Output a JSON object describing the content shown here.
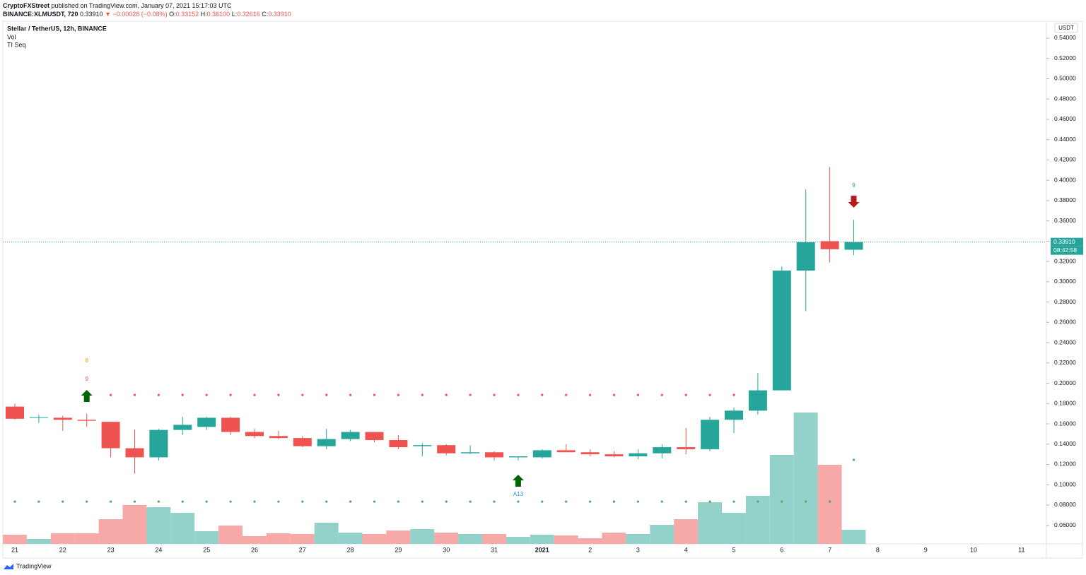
{
  "header": {
    "author": "CryptoFXStreet",
    "published": "published on TradingView.com, January 07, 2021 15:17:03 UTC",
    "symbol": "BINANCE:XLMUSDT, 720",
    "last": "0.33910",
    "change": "▼ −0.00028 (−0.08%)",
    "o_label": "O:",
    "o": "0.33152",
    "h_label": "H:",
    "h": "0.36100",
    "l_label": "L:",
    "l": "0.32616",
    "c_label": "C:",
    "c": "0.33910"
  },
  "footer": {
    "brand": "TradingView"
  },
  "chart_data": {
    "type": "candlestick",
    "title": "Stellar / TetherUS, 12h, BINANCE",
    "indicators": [
      "Vol",
      "TI Seq"
    ],
    "currency": "USDT",
    "up_color": "#26a69a",
    "down_color": "#ef5350",
    "up_volume_color": "#92d2ca",
    "down_volume_color": "#f7a9a7",
    "categories": [
      "21",
      null,
      "22",
      null,
      "23",
      null,
      "24",
      null,
      "25",
      null,
      "26",
      null,
      "27",
      null,
      "28",
      null,
      "29",
      null,
      "30",
      null,
      "31",
      null,
      "2021",
      null,
      "2",
      null,
      "3",
      null,
      "4",
      null,
      "5",
      null,
      "6",
      null,
      "7",
      null,
      "8",
      null,
      "9",
      null,
      "10",
      null,
      "11"
    ],
    "open": [
      0.177,
      0.166,
      0.166,
      0.164,
      0.162,
      0.136,
      0.127,
      0.154,
      0.157,
      0.166,
      0.152,
      0.148,
      0.146,
      0.138,
      0.145,
      0.152,
      0.144,
      0.138,
      0.139,
      0.131,
      0.132,
      0.127,
      0.127,
      0.134,
      0.132,
      0.13,
      0.128,
      0.131,
      0.137,
      0.135,
      0.164,
      0.173,
      0.193,
      0.311,
      0.34,
      0.33152,
      null,
      null,
      null,
      null,
      null,
      null,
      null
    ],
    "high": [
      0.18,
      0.169,
      0.168,
      0.17,
      0.162,
      0.1545,
      0.155,
      0.167,
      0.167,
      0.167,
      0.155,
      0.153,
      0.148,
      0.155,
      0.154,
      0.152,
      0.149,
      0.141,
      0.14,
      0.139,
      0.133,
      0.128,
      0.135,
      0.14,
      0.135,
      0.133,
      0.135,
      0.14,
      0.156,
      0.167,
      0.176,
      0.21,
      0.315,
      0.391,
      0.413,
      0.361,
      null,
      null,
      null,
      null,
      null,
      null,
      null
    ],
    "low": [
      0.164,
      0.161,
      0.153,
      0.157,
      0.127,
      0.111,
      0.124,
      0.149,
      0.154,
      0.149,
      0.146,
      0.145,
      0.137,
      0.135,
      0.143,
      0.142,
      0.135,
      0.128,
      0.129,
      0.13,
      0.124,
      0.124,
      0.126,
      0.132,
      0.128,
      0.127,
      0.125,
      0.126,
      0.13,
      0.133,
      0.151,
      0.169,
      0.193,
      0.271,
      0.319,
      0.32616,
      null,
      null,
      null,
      null,
      null,
      null,
      null
    ],
    "close": [
      0.165,
      0.1665,
      0.164,
      0.163,
      0.136,
      0.127,
      0.154,
      0.159,
      0.166,
      0.152,
      0.148,
      0.146,
      0.138,
      0.145,
      0.152,
      0.144,
      0.137,
      0.139,
      0.131,
      0.132,
      0.127,
      0.128,
      0.134,
      0.132,
      0.13,
      0.128,
      0.131,
      0.137,
      0.135,
      0.164,
      0.173,
      0.193,
      0.311,
      0.339,
      0.332,
      0.3391,
      null,
      null,
      null,
      null,
      null,
      null,
      null
    ],
    "volume": [
      13,
      7,
      15,
      15,
      35,
      55,
      52,
      44,
      18,
      26,
      11,
      15,
      14,
      30,
      16,
      14,
      19,
      21,
      16,
      14,
      14,
      10,
      13,
      12,
      8,
      16,
      14,
      27,
      35,
      59,
      44,
      68,
      126,
      186,
      112,
      20,
      null,
      null,
      null,
      null,
      null,
      null,
      null
    ],
    "tdst_resistance": [
      null,
      null,
      null,
      null,
      0.1885,
      0.1885,
      0.1885,
      0.1885,
      0.1885,
      0.1885,
      0.1885,
      0.1885,
      0.1885,
      0.1885,
      0.1885,
      0.1885,
      0.1885,
      0.1885,
      0.1885,
      0.1885,
      0.1885,
      0.1885,
      0.1885,
      0.1885,
      0.1885,
      0.1885,
      0.1885,
      0.1885,
      0.1885,
      0.1885,
      0.1885,
      null,
      null,
      null,
      null,
      null,
      null,
      null,
      null,
      null,
      null,
      null,
      null
    ],
    "tdst_support": [
      0.0834,
      0.0834,
      0.0834,
      0.0834,
      0.0834,
      0.0834,
      0.0834,
      0.0834,
      0.0834,
      0.0834,
      0.0834,
      0.0834,
      0.0834,
      0.0834,
      0.0834,
      0.0834,
      0.0834,
      0.0834,
      0.0834,
      0.0834,
      0.0834,
      0.0834,
      0.0834,
      0.0834,
      0.0834,
      0.0834,
      0.0834,
      0.0834,
      0.0834,
      0.0834,
      0.0834,
      0.0834,
      0.0834,
      0.0834,
      0.0834,
      0.1245,
      null,
      null,
      null,
      null,
      null,
      null,
      null
    ],
    "td_labels": [
      {
        "index": 3,
        "text": "8",
        "color": "#ff9800"
      },
      {
        "index": 3,
        "text": "9",
        "color": "#ef5350"
      },
      {
        "index": 21,
        "text": "A13",
        "color": "#2196f3"
      },
      {
        "index": 35,
        "text": "9",
        "color": "#26a69a"
      }
    ],
    "arrows": [
      {
        "index": 3,
        "direction": "up",
        "color": "#006400"
      },
      {
        "index": 21,
        "direction": "up",
        "color": "#006400"
      },
      {
        "index": 35,
        "direction": "down",
        "color": "#b71c1c"
      }
    ],
    "last_price": {
      "value": 0.3391,
      "label": "0.33910"
    },
    "countdown": "08:42:58",
    "ylim": [
      0.0417,
      0.5567
    ],
    "yticks": [
      {
        "value": 0.06,
        "label": "0.06000"
      },
      {
        "value": 0.08,
        "label": "0.08000"
      },
      {
        "value": 0.1,
        "label": "0.10000"
      },
      {
        "value": 0.12,
        "label": "0.12000"
      },
      {
        "value": 0.14,
        "label": "0.14000"
      },
      {
        "value": 0.16,
        "label": "0.16000"
      },
      {
        "value": 0.18,
        "label": "0.18000"
      },
      {
        "value": 0.2,
        "label": "0.20000"
      },
      {
        "value": 0.22,
        "label": "0.22000"
      },
      {
        "value": 0.24,
        "label": "0.24000"
      },
      {
        "value": 0.26,
        "label": "0.26000"
      },
      {
        "value": 0.28,
        "label": "0.28000"
      },
      {
        "value": 0.3,
        "label": "0.30000"
      },
      {
        "value": 0.32,
        "label": "0.32000"
      },
      {
        "value": 0.34,
        "label": "0.34000"
      },
      {
        "value": 0.36,
        "label": "0.36000"
      },
      {
        "value": 0.38,
        "label": "0.38000"
      },
      {
        "value": 0.4,
        "label": "0.40000"
      },
      {
        "value": 0.42,
        "label": "0.42000"
      },
      {
        "value": 0.44,
        "label": "0.44000"
      },
      {
        "value": 0.46,
        "label": "0.46000"
      },
      {
        "value": 0.48,
        "label": "0.48000"
      },
      {
        "value": 0.5,
        "label": "0.50000"
      },
      {
        "value": 0.52,
        "label": "0.52000"
      },
      {
        "value": 0.54,
        "label": "0.54000"
      }
    ]
  }
}
